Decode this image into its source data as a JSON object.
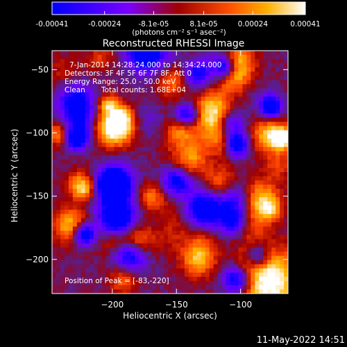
{
  "colorbar": {
    "tick_labels": [
      "-0.00041",
      "-0.00024",
      "-8.1e-05",
      "8.1e-05",
      "0.00024",
      "0.00041"
    ],
    "tick_values": [
      -0.00041,
      -0.00024,
      -8.1e-05,
      8.1e-05,
      0.00024,
      0.00041
    ],
    "range": [
      -0.00041,
      0.00041
    ],
    "units": "(photons cm⁻² s⁻¹ asec⁻²)",
    "colors": [
      "#0000ff",
      "#7a00ff",
      "#c00000",
      "#ff5000",
      "#ffb000",
      "#ffffff"
    ]
  },
  "chart_data": {
    "type": "heatmap",
    "title": "Reconstructed RHESSI Image",
    "xlabel": "Heliocentric X (arcsec)",
    "ylabel": "Heliocentric Y (arcsec)",
    "xlim": [
      -247,
      -63
    ],
    "ylim": [
      -227,
      -35
    ],
    "x_ticks": [
      -200,
      -150,
      -100
    ],
    "y_ticks": [
      -50,
      -100,
      -150,
      -200
    ],
    "annotations": {
      "time_range": "7-Jan-2014 14:28:24.000 to 14:34:24.000",
      "detectors": "Detectors: 3F 4F 5F 6F 7F 8F, Att 0",
      "energy_range": "Energy Range: 25.0 - 50.0 keV",
      "method": "Clean",
      "total_counts": "Total counts: 1.68E+04",
      "peak": "Position of Peak = [-83,-220]"
    },
    "peak_position": [
      -83,
      -220
    ]
  },
  "footer": {
    "date": "11-May-2022 14:51"
  }
}
